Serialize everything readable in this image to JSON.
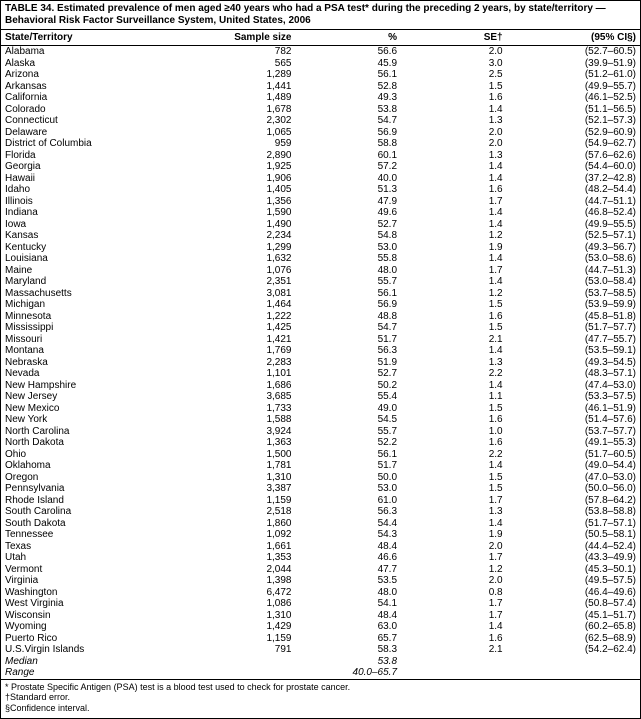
{
  "title_line1": "TABLE 34. Estimated prevalence of men aged ≥40 years who had a PSA test* during the preceding 2 years, by state/territory —",
  "title_line2": "Behavioral Risk Factor Surveillance System, United States, 2006",
  "headers": {
    "state": "State/Territory",
    "sample": "Sample size",
    "pct": "%",
    "se": "SE†",
    "ci": "(95% CI§)"
  },
  "rows": [
    {
      "state": "Alabama",
      "sample": "782",
      "pct": "56.6",
      "se": "2.0",
      "ci": "(52.7–60.5)"
    },
    {
      "state": "Alaska",
      "sample": "565",
      "pct": "45.9",
      "se": "3.0",
      "ci": "(39.9–51.9)"
    },
    {
      "state": "Arizona",
      "sample": "1,289",
      "pct": "56.1",
      "se": "2.5",
      "ci": "(51.2–61.0)"
    },
    {
      "state": "Arkansas",
      "sample": "1,441",
      "pct": "52.8",
      "se": "1.5",
      "ci": "(49.9–55.7)"
    },
    {
      "state": "California",
      "sample": "1,489",
      "pct": "49.3",
      "se": "1.6",
      "ci": "(46.1–52.5)"
    },
    {
      "state": "Colorado",
      "sample": "1,678",
      "pct": "53.8",
      "se": "1.4",
      "ci": "(51.1–56.5)"
    },
    {
      "state": "Connecticut",
      "sample": "2,302",
      "pct": "54.7",
      "se": "1.3",
      "ci": "(52.1–57.3)"
    },
    {
      "state": "Delaware",
      "sample": "1,065",
      "pct": "56.9",
      "se": "2.0",
      "ci": "(52.9–60.9)"
    },
    {
      "state": "District of Columbia",
      "sample": "959",
      "pct": "58.8",
      "se": "2.0",
      "ci": "(54.9–62.7)"
    },
    {
      "state": "Florida",
      "sample": "2,890",
      "pct": "60.1",
      "se": "1.3",
      "ci": "(57.6–62.6)"
    },
    {
      "state": "Georgia",
      "sample": "1,925",
      "pct": "57.2",
      "se": "1.4",
      "ci": "(54.4–60.0)"
    },
    {
      "state": "Hawaii",
      "sample": "1,906",
      "pct": "40.0",
      "se": "1.4",
      "ci": "(37.2–42.8)"
    },
    {
      "state": "Idaho",
      "sample": "1,405",
      "pct": "51.3",
      "se": "1.6",
      "ci": "(48.2–54.4)"
    },
    {
      "state": "Illinois",
      "sample": "1,356",
      "pct": "47.9",
      "se": "1.7",
      "ci": "(44.7–51.1)"
    },
    {
      "state": "Indiana",
      "sample": "1,590",
      "pct": "49.6",
      "se": "1.4",
      "ci": "(46.8–52.4)"
    },
    {
      "state": "Iowa",
      "sample": "1,490",
      "pct": "52.7",
      "se": "1.4",
      "ci": "(49.9–55.5)"
    },
    {
      "state": "Kansas",
      "sample": "2,234",
      "pct": "54.8",
      "se": "1.2",
      "ci": "(52.5–57.1)"
    },
    {
      "state": "Kentucky",
      "sample": "1,299",
      "pct": "53.0",
      "se": "1.9",
      "ci": "(49.3–56.7)"
    },
    {
      "state": "Louisiana",
      "sample": "1,632",
      "pct": "55.8",
      "se": "1.4",
      "ci": "(53.0–58.6)"
    },
    {
      "state": "Maine",
      "sample": "1,076",
      "pct": "48.0",
      "se": "1.7",
      "ci": "(44.7–51.3)"
    },
    {
      "state": "Maryland",
      "sample": "2,351",
      "pct": "55.7",
      "se": "1.4",
      "ci": "(53.0–58.4)"
    },
    {
      "state": "Massachusetts",
      "sample": "3,081",
      "pct": "56.1",
      "se": "1.2",
      "ci": "(53.7–58.5)"
    },
    {
      "state": "Michigan",
      "sample": "1,464",
      "pct": "56.9",
      "se": "1.5",
      "ci": "(53.9–59.9)"
    },
    {
      "state": "Minnesota",
      "sample": "1,222",
      "pct": "48.8",
      "se": "1.6",
      "ci": "(45.8–51.8)"
    },
    {
      "state": "Mississippi",
      "sample": "1,425",
      "pct": "54.7",
      "se": "1.5",
      "ci": "(51.7–57.7)"
    },
    {
      "state": "Missouri",
      "sample": "1,421",
      "pct": "51.7",
      "se": "2.1",
      "ci": "(47.7–55.7)"
    },
    {
      "state": "Montana",
      "sample": "1,769",
      "pct": "56.3",
      "se": "1.4",
      "ci": "(53.5–59.1)"
    },
    {
      "state": "Nebraska",
      "sample": "2,283",
      "pct": "51.9",
      "se": "1.3",
      "ci": "(49.3–54.5)"
    },
    {
      "state": "Nevada",
      "sample": "1,101",
      "pct": "52.7",
      "se": "2.2",
      "ci": "(48.3–57.1)"
    },
    {
      "state": "New Hampshire",
      "sample": "1,686",
      "pct": "50.2",
      "se": "1.4",
      "ci": "(47.4–53.0)"
    },
    {
      "state": "New Jersey",
      "sample": "3,685",
      "pct": "55.4",
      "se": "1.1",
      "ci": "(53.3–57.5)"
    },
    {
      "state": "New Mexico",
      "sample": "1,733",
      "pct": "49.0",
      "se": "1.5",
      "ci": "(46.1–51.9)"
    },
    {
      "state": "New York",
      "sample": "1,588",
      "pct": "54.5",
      "se": "1.6",
      "ci": "(51.4–57.6)"
    },
    {
      "state": "North Carolina",
      "sample": "3,924",
      "pct": "55.7",
      "se": "1.0",
      "ci": "(53.7–57.7)"
    },
    {
      "state": "North Dakota",
      "sample": "1,363",
      "pct": "52.2",
      "se": "1.6",
      "ci": "(49.1–55.3)"
    },
    {
      "state": "Ohio",
      "sample": "1,500",
      "pct": "56.1",
      "se": "2.2",
      "ci": "(51.7–60.5)"
    },
    {
      "state": "Oklahoma",
      "sample": "1,781",
      "pct": "51.7",
      "se": "1.4",
      "ci": "(49.0–54.4)"
    },
    {
      "state": "Oregon",
      "sample": "1,310",
      "pct": "50.0",
      "se": "1.5",
      "ci": "(47.0–53.0)"
    },
    {
      "state": "Pennsylvania",
      "sample": "3,387",
      "pct": "53.0",
      "se": "1.5",
      "ci": "(50.0–56.0)"
    },
    {
      "state": "Rhode Island",
      "sample": "1,159",
      "pct": "61.0",
      "se": "1.7",
      "ci": "(57.8–64.2)"
    },
    {
      "state": "South Carolina",
      "sample": "2,518",
      "pct": "56.3",
      "se": "1.3",
      "ci": "(53.8–58.8)"
    },
    {
      "state": "South Dakota",
      "sample": "1,860",
      "pct": "54.4",
      "se": "1.4",
      "ci": "(51.7–57.1)"
    },
    {
      "state": "Tennessee",
      "sample": "1,092",
      "pct": "54.3",
      "se": "1.9",
      "ci": "(50.5–58.1)"
    },
    {
      "state": "Texas",
      "sample": "1,661",
      "pct": "48.4",
      "se": "2.0",
      "ci": "(44.4–52.4)"
    },
    {
      "state": "Utah",
      "sample": "1,353",
      "pct": "46.6",
      "se": "1.7",
      "ci": "(43.3–49.9)"
    },
    {
      "state": "Vermont",
      "sample": "2,044",
      "pct": "47.7",
      "se": "1.2",
      "ci": "(45.3–50.1)"
    },
    {
      "state": "Virginia",
      "sample": "1,398",
      "pct": "53.5",
      "se": "2.0",
      "ci": "(49.5–57.5)"
    },
    {
      "state": "Washington",
      "sample": "6,472",
      "pct": "48.0",
      "se": "0.8",
      "ci": "(46.4–49.6)"
    },
    {
      "state": "West Virginia",
      "sample": "1,086",
      "pct": "54.1",
      "se": "1.7",
      "ci": "(50.8–57.4)"
    },
    {
      "state": "Wisconsin",
      "sample": "1,310",
      "pct": "48.4",
      "se": "1.7",
      "ci": "(45.1–51.7)"
    },
    {
      "state": "Wyoming",
      "sample": "1,429",
      "pct": "63.0",
      "se": "1.4",
      "ci": "(60.2–65.8)"
    },
    {
      "state": "Puerto Rico",
      "sample": "1,159",
      "pct": "65.7",
      "se": "1.6",
      "ci": "(62.5–68.9)"
    },
    {
      "state": "U.S.Virgin Islands",
      "sample": "791",
      "pct": "58.3",
      "se": "2.1",
      "ci": "(54.2–62.4)"
    }
  ],
  "summary": {
    "median_label": "Median",
    "median_pct": "53.8",
    "range_label": "Range",
    "range_pct": "40.0–65.7"
  },
  "footnotes": {
    "f1": "* Prostate Specific Antigen (PSA) test is a blood test used to check for prostate cancer.",
    "f2": "†Standard error.",
    "f3": "§Confidence interval."
  }
}
